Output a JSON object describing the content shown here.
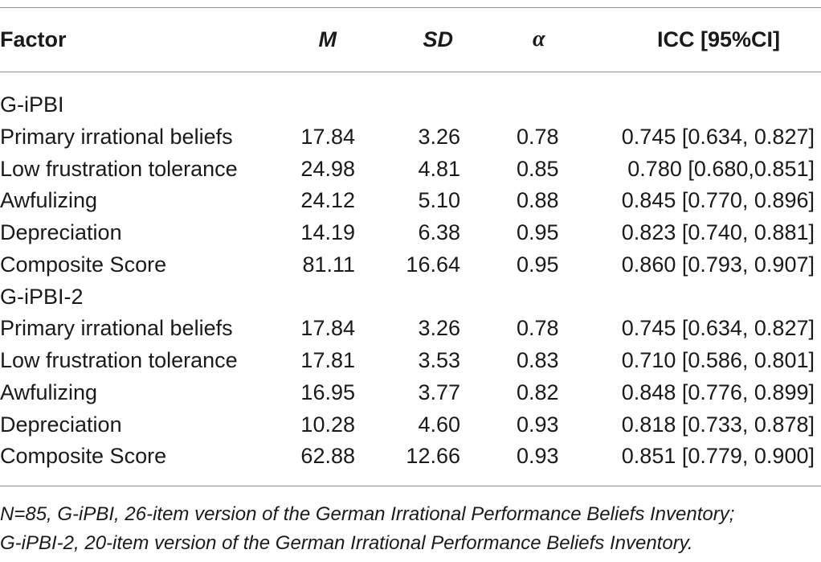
{
  "header": {
    "factor": "Factor",
    "m": "M",
    "sd": "SD",
    "alpha": "α",
    "icc": "ICC [95%CI]"
  },
  "rows": [
    {
      "factor": "G-iPBI",
      "m": "",
      "sd": "",
      "alpha": "",
      "icc": ""
    },
    {
      "factor": "Primary irrational beliefs",
      "m": "17.84",
      "sd": "3.26",
      "alpha": "0.78",
      "icc": "0.745 [0.634, 0.827]"
    },
    {
      "factor": "Low frustration tolerance",
      "m": "24.98",
      "sd": "4.81",
      "alpha": "0.85",
      "icc": "0.780 [0.680,0.851]"
    },
    {
      "factor": "Awfulizing",
      "m": "24.12",
      "sd": "5.10",
      "alpha": "0.88",
      "icc": "0.845 [0.770, 0.896]"
    },
    {
      "factor": "Depreciation",
      "m": "14.19",
      "sd": "6.38",
      "alpha": "0.95",
      "icc": "0.823 [0.740, 0.881]"
    },
    {
      "factor": "Composite Score",
      "m": "81.11",
      "sd": "16.64",
      "alpha": "0.95",
      "icc": "0.860 [0.793, 0.907]"
    },
    {
      "factor": "G-iPBI-2",
      "m": "",
      "sd": "",
      "alpha": "",
      "icc": ""
    },
    {
      "factor": "Primary irrational beliefs",
      "m": "17.84",
      "sd": "3.26",
      "alpha": "0.78",
      "icc": "0.745 [0.634, 0.827]"
    },
    {
      "factor": "Low frustration tolerance",
      "m": "17.81",
      "sd": "3.53",
      "alpha": "0.83",
      "icc": "0.710 [0.586, 0.801]"
    },
    {
      "factor": "Awfulizing",
      "m": "16.95",
      "sd": "3.77",
      "alpha": "0.82",
      "icc": "0.848 [0.776, 0.899]"
    },
    {
      "factor": "Depreciation",
      "m": "10.28",
      "sd": "4.60",
      "alpha": "0.93",
      "icc": "0.818 [0.733, 0.878]"
    },
    {
      "factor": "Composite Score",
      "m": "62.88",
      "sd": "12.66",
      "alpha": "0.93",
      "icc": "0.851 [0.779, 0.900]"
    }
  ],
  "footnote": {
    "line1": "N=85, G-iPBI, 26-item version of the German Irrational Performance Beliefs Inventory;",
    "line2": "G-iPBI-2, 20-item version of the German Irrational Performance Beliefs Inventory."
  }
}
